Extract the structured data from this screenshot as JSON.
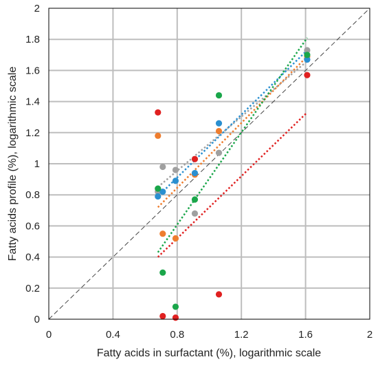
{
  "chart_data": {
    "type": "scatter",
    "xlabel": "Fatty acids in surfactant (%), logarithmic scale",
    "ylabel": "Fatty acids profile (%), logarithmic scale",
    "xlim": [
      0,
      2
    ],
    "ylim": [
      0,
      2
    ],
    "x_ticks": [
      "0",
      "0.4",
      "0.8",
      "1.2",
      "1.6",
      "2"
    ],
    "y_ticks": [
      "0",
      "0.2",
      "0.4",
      "0.6",
      "0.8",
      "1",
      "1.2",
      "1.4",
      "1.6",
      "1.8",
      "2"
    ],
    "grid": true,
    "reference_line": {
      "from": [
        0,
        0
      ],
      "to": [
        2,
        2
      ],
      "style": "dashed",
      "color": "#444444"
    },
    "series": [
      {
        "color": "#e02020",
        "points": [
          [
            0.68,
            1.33
          ],
          [
            0.71,
            0.02
          ],
          [
            0.79,
            0.01
          ],
          [
            0.91,
            1.03
          ],
          [
            1.06,
            0.16
          ],
          [
            1.61,
            1.57
          ]
        ],
        "trendline": [
          [
            0.68,
            0.4
          ],
          [
            1.61,
            1.33
          ]
        ]
      },
      {
        "color": "#ee7d2e",
        "points": [
          [
            0.68,
            1.18
          ],
          [
            0.71,
            0.55
          ],
          [
            0.79,
            0.52
          ],
          [
            0.91,
            0.93
          ],
          [
            1.06,
            1.21
          ],
          [
            1.61,
            1.69
          ]
        ],
        "trendline": [
          [
            0.68,
            0.72
          ],
          [
            1.61,
            1.69
          ]
        ]
      },
      {
        "color": "#a0a0a0",
        "points": [
          [
            0.68,
            0.82
          ],
          [
            0.71,
            0.98
          ],
          [
            0.79,
            0.96
          ],
          [
            0.91,
            0.68
          ],
          [
            1.06,
            1.07
          ],
          [
            1.61,
            1.73
          ]
        ],
        "trendline": [
          [
            0.68,
            0.85
          ],
          [
            1.61,
            1.66
          ]
        ]
      },
      {
        "color": "#2a8fd0",
        "points": [
          [
            0.68,
            0.79
          ],
          [
            0.71,
            0.82
          ],
          [
            0.79,
            0.89
          ],
          [
            0.91,
            0.94
          ],
          [
            1.06,
            1.26
          ],
          [
            1.61,
            1.67
          ]
        ],
        "trendline": [
          [
            0.68,
            0.79
          ],
          [
            1.61,
            1.73
          ]
        ]
      },
      {
        "color": "#1aa64a",
        "points": [
          [
            0.68,
            0.84
          ],
          [
            0.71,
            0.3
          ],
          [
            0.79,
            0.08
          ],
          [
            0.91,
            0.77
          ],
          [
            1.06,
            1.44
          ],
          [
            1.61,
            1.7
          ]
        ],
        "trendline": [
          [
            0.68,
            0.43
          ],
          [
            1.61,
            1.81
          ]
        ]
      }
    ]
  }
}
